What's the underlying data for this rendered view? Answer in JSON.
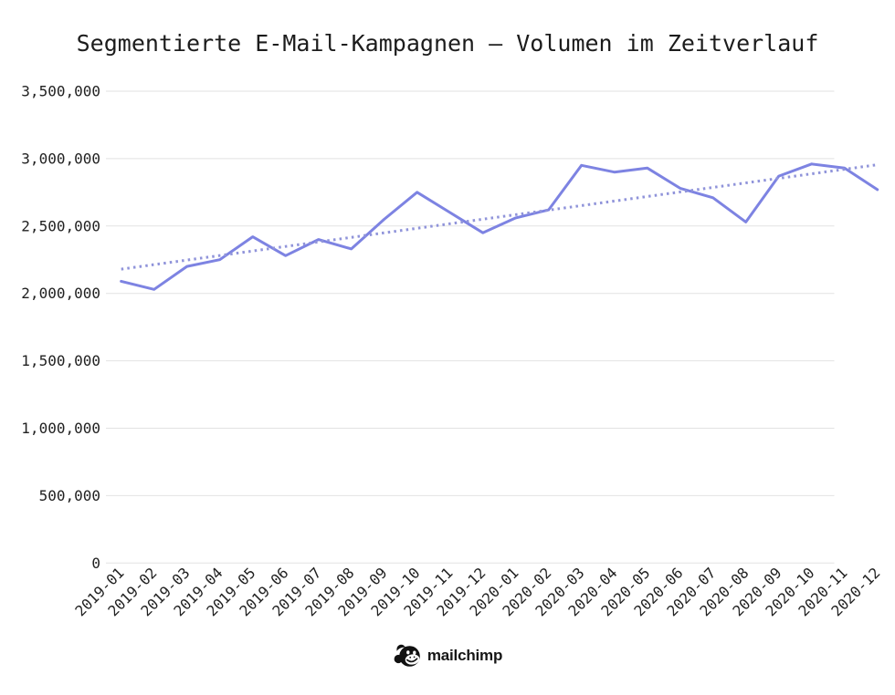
{
  "footer": {
    "brand": "mailchimp",
    "logo_icon": "freddie-chimp-icon"
  },
  "chart_data": {
    "type": "line",
    "title": "Segmentierte E-Mail-Kampagnen – Volumen im Zeitverlauf",
    "x": [
      "2019-01",
      "2019-02",
      "2019-03",
      "2019-04",
      "2019-05",
      "2019-06",
      "2019-07",
      "2019-08",
      "2019-09",
      "2019-10",
      "2019-11",
      "2019-12",
      "2020-01",
      "2020-02",
      "2020-03",
      "2020-04",
      "2020-05",
      "2020-06",
      "2020-07",
      "2020-08",
      "2020-09",
      "2020-10",
      "2020-11",
      "2020-12"
    ],
    "series": [
      {
        "name": "Volumen",
        "style": "solid",
        "color": "#7d83e2",
        "values": [
          2090000,
          2030000,
          2200000,
          2250000,
          2420000,
          2280000,
          2400000,
          2330000,
          2550000,
          2750000,
          2600000,
          2450000,
          2560000,
          2620000,
          2950000,
          2900000,
          2930000,
          2780000,
          2710000,
          2530000,
          2870000,
          2960000,
          2930000,
          2770000
        ]
      },
      {
        "name": "Trend",
        "style": "dotted",
        "color": "#9094da",
        "trend": {
          "start": 2180000,
          "end": 2955000
        }
      }
    ],
    "xlabel": "",
    "ylabel": "",
    "ylim": [
      0,
      3500000
    ],
    "ytick_step": 500000,
    "ytick_labels": [
      "0",
      "500,000",
      "1,000,000",
      "1,500,000",
      "2,000,000",
      "2,500,000",
      "3,000,000",
      "3,500,000"
    ],
    "grid": "horizontal",
    "grid_color": "#e2e2e2",
    "text_color": "#212121",
    "legend": "none",
    "x_label_rotation_deg": 45
  }
}
